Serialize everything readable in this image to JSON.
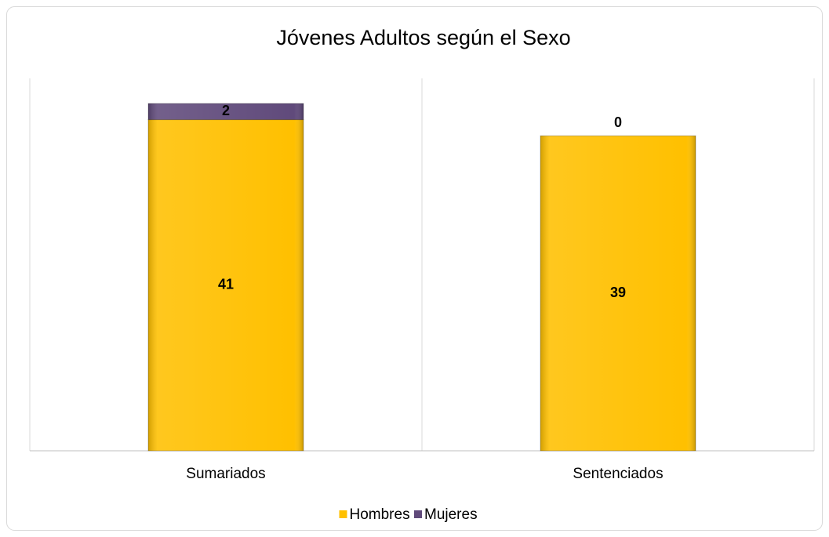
{
  "chart_data": {
    "type": "bar",
    "stacked": true,
    "title": "Jóvenes Adultos según el Sexo",
    "categories": [
      "Sumariados",
      "Sentenciados"
    ],
    "series": [
      {
        "name": "Hombres",
        "color": "#FFC000",
        "values": [
          41,
          39
        ]
      },
      {
        "name": "Mujeres",
        "color": "#604A7B",
        "values": [
          2,
          0
        ]
      }
    ],
    "legend": "bottom"
  }
}
